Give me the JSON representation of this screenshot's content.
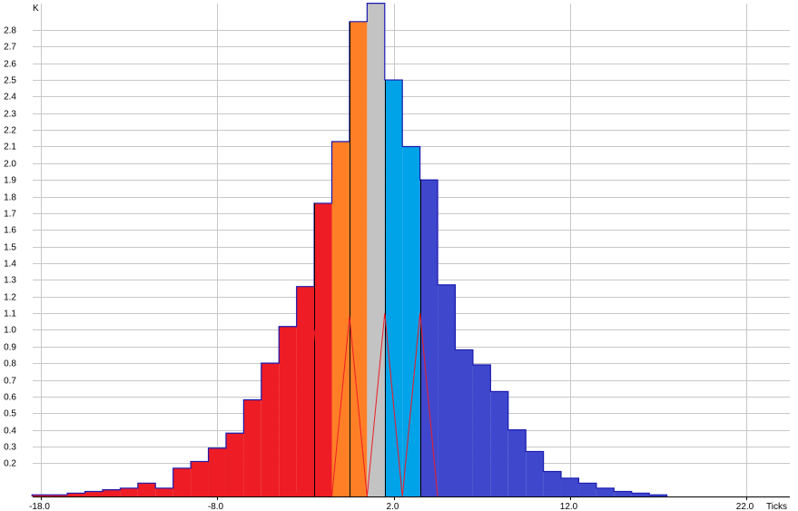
{
  "chart_data": {
    "type": "bar",
    "title": "",
    "ylabel": "K",
    "xlabel": "Ticks",
    "xlim": [
      -18.5,
      22.5
    ],
    "ylim": [
      0,
      2.95
    ],
    "grid": true,
    "xticks": [
      -18.0,
      -8.0,
      2.0,
      12.0,
      22.0
    ],
    "xtick_labels": [
      "-18.0",
      "-8.0",
      "2.0",
      "12.0",
      "22.0"
    ],
    "yticks": [
      0.2,
      0.3,
      0.4,
      0.5,
      0.6,
      0.7,
      0.8,
      0.9,
      1.0,
      1.1,
      1.2,
      1.3,
      1.4,
      1.5,
      1.6,
      1.7,
      1.8,
      1.9,
      2.0,
      2.1,
      2.2,
      2.3,
      2.4,
      2.5,
      2.6,
      2.7,
      2.8
    ],
    "ytick_labels": [
      "0.2",
      "0.3",
      "0.4",
      "0.5",
      "0.6",
      "0.7",
      "0.8",
      "0.9",
      "1.0",
      "1.1",
      "1.2",
      "1.3",
      "1.4",
      "1.5",
      "1.6",
      "1.7",
      "1.8",
      "1.9",
      "2.0",
      "2.1",
      "2.2",
      "2.3",
      "2.4",
      "2.5",
      "2.6",
      "2.7",
      "2.8"
    ],
    "bins": [
      {
        "x": -18,
        "y": 0.01,
        "color": "#ee1c24"
      },
      {
        "x": -17,
        "y": 0.01,
        "color": "#ee1c24"
      },
      {
        "x": -16,
        "y": 0.02,
        "color": "#ee1c24"
      },
      {
        "x": -15,
        "y": 0.03,
        "color": "#ee1c24"
      },
      {
        "x": -14,
        "y": 0.04,
        "color": "#ee1c24"
      },
      {
        "x": -13,
        "y": 0.05,
        "color": "#ee1c24"
      },
      {
        "x": -12,
        "y": 0.08,
        "color": "#ee1c24"
      },
      {
        "x": -11,
        "y": 0.05,
        "color": "#ee1c24"
      },
      {
        "x": -10,
        "y": 0.17,
        "color": "#ee1c24"
      },
      {
        "x": -9,
        "y": 0.21,
        "color": "#ee1c24"
      },
      {
        "x": -8,
        "y": 0.29,
        "color": "#ee1c24"
      },
      {
        "x": -7,
        "y": 0.38,
        "color": "#ee1c24"
      },
      {
        "x": -6,
        "y": 0.58,
        "color": "#ee1c24"
      },
      {
        "x": -5,
        "y": 0.8,
        "color": "#ee1c24"
      },
      {
        "x": -4,
        "y": 1.02,
        "color": "#ee1c24"
      },
      {
        "x": -3,
        "y": 1.26,
        "color": "#ee1c24"
      },
      {
        "x": -2,
        "y": 1.76,
        "color": "#ee1c24"
      },
      {
        "x": -1,
        "y": 2.13,
        "color": "#ff7f27"
      },
      {
        "x": 0,
        "y": 2.85,
        "color": "#ff7f27"
      },
      {
        "x": 1,
        "y": 2.96,
        "color": "#c3c3c3"
      },
      {
        "x": 2,
        "y": 2.5,
        "color": "#00a2e8"
      },
      {
        "x": 3,
        "y": 2.1,
        "color": "#00a2e8"
      },
      {
        "x": 4,
        "y": 1.9,
        "color": "#3f48cc"
      },
      {
        "x": 5,
        "y": 1.27,
        "color": "#3f48cc"
      },
      {
        "x": 6,
        "y": 0.88,
        "color": "#3f48cc"
      },
      {
        "x": 7,
        "y": 0.79,
        "color": "#3f48cc"
      },
      {
        "x": 8,
        "y": 0.63,
        "color": "#3f48cc"
      },
      {
        "x": 9,
        "y": 0.4,
        "color": "#3f48cc"
      },
      {
        "x": 10,
        "y": 0.27,
        "color": "#3f48cc"
      },
      {
        "x": 11,
        "y": 0.15,
        "color": "#3f48cc"
      },
      {
        "x": 12,
        "y": 0.11,
        "color": "#3f48cc"
      },
      {
        "x": 13,
        "y": 0.08,
        "color": "#3f48cc"
      },
      {
        "x": 14,
        "y": 0.05,
        "color": "#3f48cc"
      },
      {
        "x": 15,
        "y": 0.03,
        "color": "#3f48cc"
      },
      {
        "x": 16,
        "y": 0.02,
        "color": "#3f48cc"
      },
      {
        "x": 17,
        "y": 0.01,
        "color": "#3f48cc"
      }
    ],
    "outline_color": "#1a1ab0",
    "overlay_line": {
      "color": "#ee1c24",
      "points": [
        [
          -3.5,
          0.0
        ],
        [
          -2.5,
          1.0
        ],
        [
          -1.5,
          0.0
        ],
        [
          -0.5,
          1.08
        ],
        [
          0.5,
          0.0
        ],
        [
          1.5,
          1.1
        ],
        [
          2.5,
          0.0
        ],
        [
          3.5,
          1.1
        ],
        [
          4.5,
          0.0
        ]
      ]
    },
    "bin_edge_lines": {
      "color": "#000000",
      "x": [
        -2.5,
        -0.5,
        1.5,
        3.5
      ]
    }
  }
}
